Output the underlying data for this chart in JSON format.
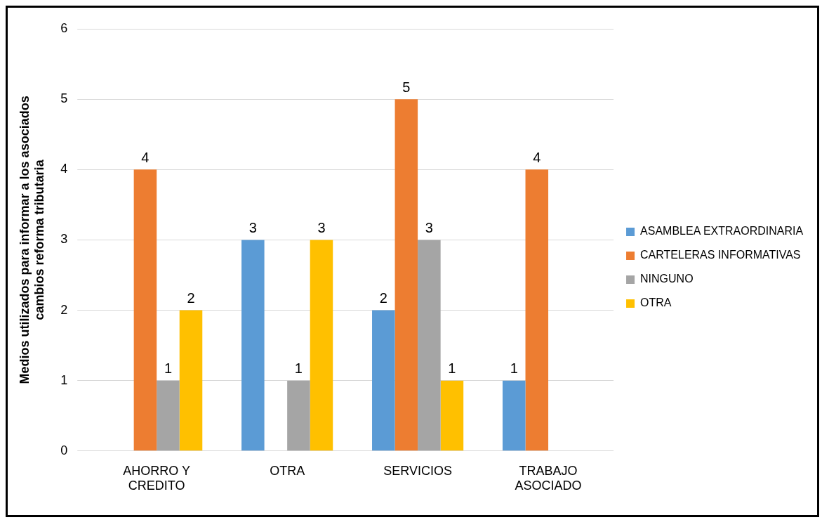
{
  "chart_data": {
    "type": "bar",
    "ylabel": "Medios utilizados para informar a los asociados cambios reforma tributaria",
    "categories": [
      "AHORRO Y CREDITO",
      "OTRA",
      "SERVICIOS",
      "TRABAJO ASOCIADO"
    ],
    "series": [
      {
        "name": "ASAMBLEA EXTRAORDINARIA",
        "color": "#5b9bd5",
        "values": [
          null,
          3,
          2,
          1
        ]
      },
      {
        "name": "CARTELERAS INFORMATIVAS",
        "color": "#ed7d31",
        "values": [
          4,
          null,
          5,
          4
        ]
      },
      {
        "name": "NINGUNO",
        "color": "#a5a5a5",
        "values": [
          1,
          1,
          3,
          null
        ]
      },
      {
        "name": "OTRA",
        "color": "#ffc000",
        "values": [
          2,
          3,
          1,
          null
        ]
      }
    ],
    "ylim": [
      0,
      6
    ],
    "yticks": [
      0,
      1,
      2,
      3,
      4,
      5,
      6
    ],
    "grid": "y",
    "legend": "right",
    "data_labels": true
  }
}
